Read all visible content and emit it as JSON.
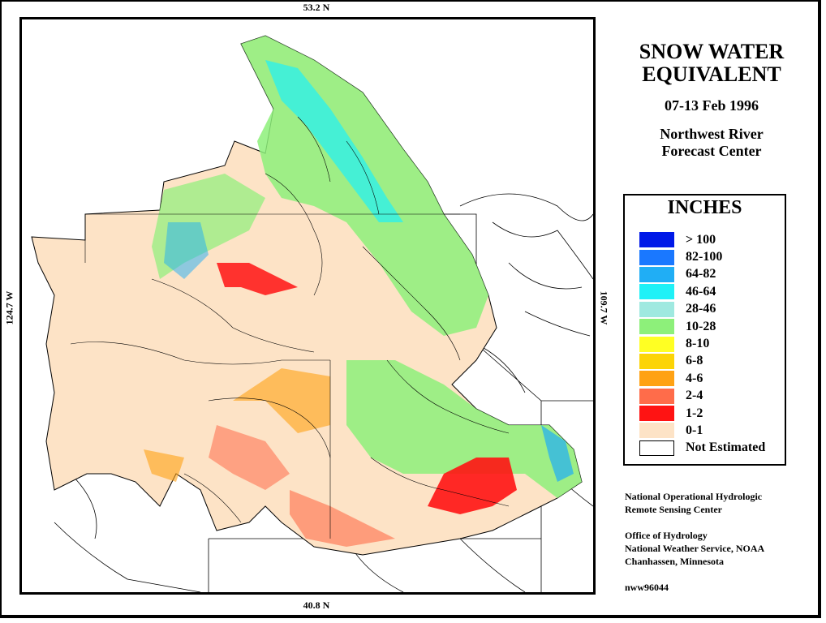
{
  "map": {
    "lat_top": "53.2 N",
    "lat_bottom": "40.8 N",
    "lon_left": "124.7 W",
    "lon_right": "109.7 W"
  },
  "title": {
    "line1": "SNOW WATER",
    "line2": "EQUIVALENT",
    "date": "07-13 Feb 1996",
    "org_line1": "Northwest River",
    "org_line2": "Forecast Center"
  },
  "legend": {
    "heading": "INCHES",
    "items": [
      {
        "label": "> 100",
        "color": "#0019e8"
      },
      {
        "label": "82-100",
        "color": "#1a78ff"
      },
      {
        "label": "64-82",
        "color": "#20aef5"
      },
      {
        "label": "46-64",
        "color": "#1ff1f7"
      },
      {
        "label": "28-46",
        "color": "#9fe9e0"
      },
      {
        "label": "10-28",
        "color": "#8df07a"
      },
      {
        "label": "8-10",
        "color": "#ffff23"
      },
      {
        "label": "6-8",
        "color": "#fcd406"
      },
      {
        "label": "4-6",
        "color": "#ffa214"
      },
      {
        "label": "2-4",
        "color": "#ff6c4a"
      },
      {
        "label": "1-2",
        "color": "#ff1313"
      },
      {
        "label": "0-1",
        "color": "#fde3c6"
      },
      {
        "label": "Not Estimated",
        "color": "#ffffff"
      }
    ]
  },
  "credits": {
    "line1": "National Operational Hydrologic",
    "line2": "Remote Sensing Center",
    "line3": "Office of Hydrology",
    "line4": "National Weather Service, NOAA",
    "line5": "Chanhassen, Minnesota",
    "code": "nww96044"
  }
}
